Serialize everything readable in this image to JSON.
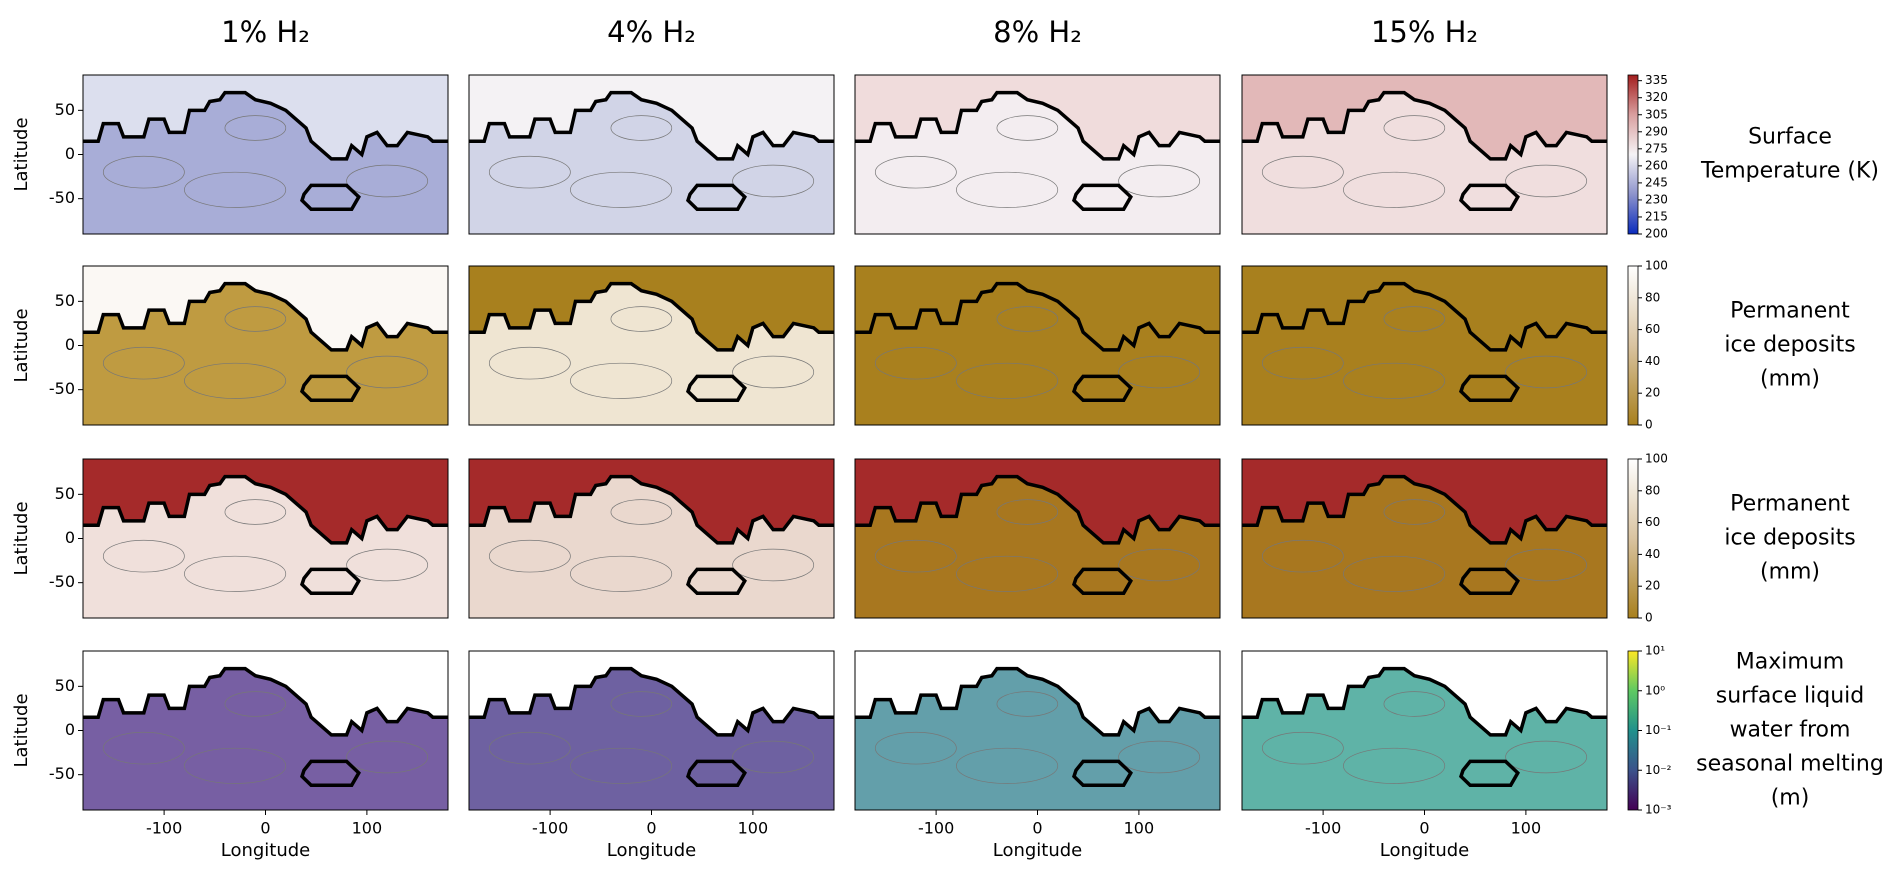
{
  "chart_data": {
    "type": "contour-map",
    "columns": [
      "1% H₂",
      "4% H₂",
      "8% H₂",
      "15% H₂"
    ],
    "xaxis": {
      "label": "Longitude",
      "lim": [
        -180,
        180
      ],
      "ticks": [
        -100,
        0,
        100
      ]
    },
    "yaxis": {
      "label": "Latitude",
      "lim": [
        -90,
        90
      ],
      "ticks": [
        -50,
        0,
        50
      ]
    },
    "rows": [
      {
        "label": [
          "Surface",
          "Temperature (K)"
        ],
        "fills": [
          [
            "#dcdfee",
            "#a2a7d4"
          ],
          [
            "#f4f2f4",
            "#cdd0e6"
          ],
          [
            "#f0dcdc",
            "#f3eef2"
          ],
          [
            "#e2b8b8",
            "#f2e2e2"
          ]
        ],
        "colorbar": {
          "lim": [
            200,
            340
          ],
          "log": false,
          "colors": [
            "#0a2bbd",
            "#8d93cc",
            "#f5f3f5",
            "#d99f9f",
            "#a31e1e"
          ],
          "ticks": [
            200,
            215,
            230,
            245,
            260,
            275,
            290,
            305,
            320,
            335
          ]
        }
      },
      {
        "label": [
          "Permanent",
          "ice deposits",
          "(mm)"
        ],
        "fills": [
          [
            "#fbf8f4",
            "#b8902e"
          ],
          [
            "#a8801e",
            "#f6f0e6"
          ],
          [
            "#a8801e",
            "#a8801e"
          ],
          [
            "#a8801e",
            "#a8801e"
          ]
        ],
        "colorbar": {
          "lim": [
            0,
            100
          ],
          "log": false,
          "colors": [
            "#a8801e",
            "#d9c3a0",
            "#ffffff"
          ],
          "ticks": [
            0,
            20,
            40,
            60,
            80,
            100
          ]
        }
      },
      {
        "label": [
          "Permanent",
          "ice deposits",
          "(mm)"
        ],
        "fills": [
          [
            "#a52a2a",
            "#f8f4ee"
          ],
          [
            "#a52a2a",
            "#f2ebe0"
          ],
          [
            "#a52a2a",
            "#a8801e"
          ],
          [
            "#a52a2a",
            "#a8801e"
          ]
        ],
        "colorbar": {
          "lim": [
            0,
            100
          ],
          "log": false,
          "colors": [
            "#a8801e",
            "#d9c3a0",
            "#ffffff"
          ],
          "ticks": [
            0,
            20,
            40,
            60,
            80,
            100
          ]
        }
      },
      {
        "label": [
          "Maximum",
          "surface liquid",
          "water from",
          "seasonal melting",
          "(m)"
        ],
        "fills": [
          [
            "#ffffff",
            "#4a2a84"
          ],
          [
            "#ffffff",
            "#3d2c82"
          ],
          [
            "#ffffff",
            "#2f7f8e"
          ],
          [
            "#ffffff",
            "#2a9a8a"
          ]
        ],
        "colorbar": {
          "lim": [
            0.001,
            10
          ],
          "log": true,
          "colors": [
            "#440154",
            "#3b528b",
            "#21918c",
            "#5ec962",
            "#fde725"
          ],
          "ticks": [
            {
              "value": 10,
              "label": "10¹"
            },
            {
              "value": 1,
              "label": "10⁰"
            },
            {
              "value": 0.1,
              "label": "10⁻¹"
            },
            {
              "value": 0.01,
              "label": "10⁻²"
            },
            {
              "value": 0.001,
              "label": "10⁻³"
            }
          ]
        }
      }
    ]
  }
}
